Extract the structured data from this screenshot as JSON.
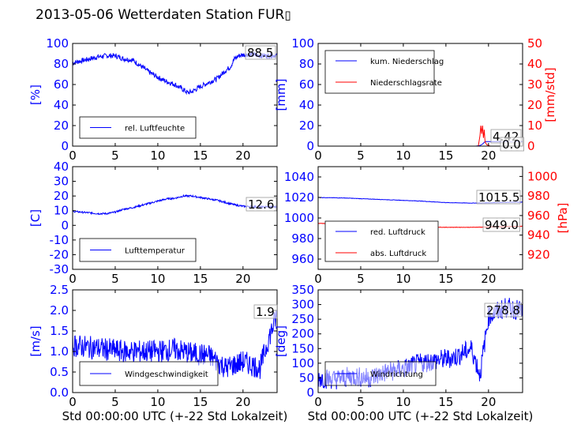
{
  "figure": {
    "title": "2013-05-06 Wetterdaten Station FUR",
    "title_glyph": "▯"
  },
  "chart_data": [
    {
      "id": "humidity",
      "type": "line",
      "xlim": [
        0,
        24
      ],
      "ylim": [
        0,
        100
      ],
      "xticks": [
        0,
        5,
        10,
        15,
        20
      ],
      "yticks": [
        0,
        20,
        40,
        60,
        80,
        100
      ],
      "ylabel": "[%]",
      "xlabel": "",
      "legend": "bottom-left",
      "series": [
        {
          "name": "rel. Luftfeuchte",
          "color": "#0000ff",
          "x": [
            0,
            1,
            2,
            3,
            4,
            5,
            6,
            7,
            8,
            9,
            10,
            11,
            12,
            13,
            13.5,
            14,
            15,
            16,
            17,
            18,
            18.5,
            19,
            19.5,
            20,
            21,
            22,
            23,
            24
          ],
          "y": [
            81,
            83,
            85,
            87,
            88,
            88,
            85,
            84,
            78,
            72,
            67,
            63,
            60,
            55,
            52,
            53,
            58,
            62,
            66,
            74,
            77,
            85,
            88,
            89,
            89,
            88,
            88,
            88.5
          ],
          "noise": 2.5
        }
      ],
      "last_label": "88.5"
    },
    {
      "id": "precip",
      "type": "line",
      "xlim": [
        0,
        24
      ],
      "ylim": [
        0,
        100
      ],
      "y2lim": [
        0,
        50
      ],
      "xticks": [
        0,
        5,
        10,
        15,
        20
      ],
      "yticks": [
        0,
        20,
        40,
        60,
        80,
        100
      ],
      "y2ticks": [
        0,
        10,
        20,
        30,
        40,
        50
      ],
      "ylabel": "[mm]",
      "y2label": "[mm/std]",
      "xlabel": "",
      "legend": "top-left",
      "series": [
        {
          "name": "kum. Niederschlag",
          "color": "#0000ff",
          "axis": "left",
          "x": [
            0,
            18.5,
            19,
            19.3,
            19.6,
            24
          ],
          "y": [
            0,
            0,
            0.5,
            2.0,
            4.42,
            4.42
          ],
          "noise": 0
        },
        {
          "name": "Niederschlagsrate",
          "color": "#ff0000",
          "axis": "right",
          "x": [
            0,
            18.8,
            19.0,
            19.1,
            19.2,
            19.3,
            19.4,
            19.5,
            19.6,
            19.8,
            20.2,
            24
          ],
          "y": [
            0,
            0,
            5,
            10,
            6,
            10,
            4,
            8,
            2,
            0.6,
            0,
            0
          ],
          "noise": 0
        }
      ],
      "last_labels": [
        "4.42",
        "0.0"
      ]
    },
    {
      "id": "temperature",
      "type": "line",
      "xlim": [
        0,
        24
      ],
      "ylim": [
        -30,
        40
      ],
      "xticks": [
        0,
        5,
        10,
        15,
        20
      ],
      "yticks": [
        -30,
        -20,
        -10,
        0,
        10,
        20,
        30,
        40
      ],
      "ylabel": "[C]",
      "xlabel": "",
      "legend": "bottom-left",
      "series": [
        {
          "name": "Lufttemperatur",
          "color": "#0000ff",
          "x": [
            0,
            1,
            2,
            3,
            4,
            5,
            6,
            7,
            8,
            9,
            10,
            11,
            12,
            13,
            14,
            15,
            16,
            17,
            18,
            19,
            20,
            21,
            22,
            23,
            24
          ],
          "y": [
            9.5,
            9,
            8.5,
            8,
            8,
            9,
            11,
            12,
            13.5,
            15,
            16.5,
            18,
            18.5,
            20,
            20,
            19,
            18,
            17,
            15.5,
            14,
            13,
            12.8,
            12.6,
            12.6,
            12.6
          ],
          "noise": 0.6
        }
      ],
      "last_label": "12.6"
    },
    {
      "id": "pressure",
      "type": "line",
      "xlim": [
        0,
        24
      ],
      "ylim": [
        950,
        1050
      ],
      "y2lim": [
        905,
        1010
      ],
      "xticks": [
        0,
        5,
        10,
        15,
        20
      ],
      "yticks": [
        960,
        980,
        1000,
        1020,
        1040
      ],
      "y2ticks": [
        920,
        940,
        960,
        980,
        1000
      ],
      "ylabel": "",
      "y2label": "[hPa]",
      "xlabel": "",
      "legend": "bottom-left",
      "series": [
        {
          "name": "red. Luftdruck",
          "color": "#0000ff",
          "axis": "left",
          "x": [
            0,
            3,
            6,
            9,
            12,
            15,
            18,
            21,
            24
          ],
          "y": [
            1020,
            1019.5,
            1018.5,
            1017.5,
            1016.5,
            1015,
            1014.5,
            1015,
            1015.5
          ],
          "noise": 0.2
        },
        {
          "name": "abs. Luftdruck",
          "color": "#ff0000",
          "axis": "right",
          "x": [
            0,
            3,
            6,
            9,
            12,
            15,
            18,
            21,
            24
          ],
          "y": [
            952,
            951.5,
            950.5,
            949.5,
            948.5,
            948,
            948,
            948.5,
            949
          ],
          "noise": 0.2
        }
      ],
      "last_labels": [
        "1015.5",
        "949.0"
      ]
    },
    {
      "id": "windspeed",
      "type": "line",
      "xlim": [
        0,
        24
      ],
      "ylim": [
        0,
        2.5
      ],
      "xticks": [
        0,
        5,
        10,
        15,
        20
      ],
      "yticks": [
        0.0,
        0.5,
        1.0,
        1.5,
        2.0,
        2.5
      ],
      "ylabel": "[m/s]",
      "xlabel": "Std 00:00:00 UTC (+-22 Std Lokalzeit)",
      "legend": "bottom-left",
      "series": [
        {
          "name": "Windgeschwindigkeit",
          "color": "#0000ff",
          "x": [
            0,
            2,
            4,
            6,
            8,
            10,
            12,
            14,
            16,
            18,
            20,
            22,
            23,
            24
          ],
          "y": [
            1.15,
            1.1,
            1.05,
            1.0,
            1.0,
            1.0,
            1.05,
            0.95,
            0.9,
            0.6,
            0.75,
            0.6,
            1.3,
            1.9
          ],
          "noise": 0.28
        }
      ],
      "last_label": "1.9"
    },
    {
      "id": "winddir",
      "type": "line",
      "xlim": [
        0,
        24
      ],
      "ylim": [
        0,
        350
      ],
      "xticks": [
        0,
        5,
        10,
        15,
        20
      ],
      "yticks": [
        0,
        50,
        100,
        150,
        200,
        250,
        300,
        350
      ],
      "ylabel": "[deg]",
      "xlabel": "Std 00:00:00 UTC (+-22 Std Lokalzeit)",
      "legend": "bottom-left",
      "series": [
        {
          "name": "Windrichtung",
          "color": "#0000ff",
          "x": [
            0,
            2,
            4,
            6,
            8,
            10,
            12,
            14,
            16,
            18,
            19,
            20,
            22,
            24
          ],
          "y": [
            50,
            45,
            55,
            50,
            70,
            80,
            100,
            110,
            120,
            150,
            60,
            260,
            290,
            278.8
          ],
          "noise": 35
        }
      ],
      "last_label": "278.8"
    }
  ]
}
